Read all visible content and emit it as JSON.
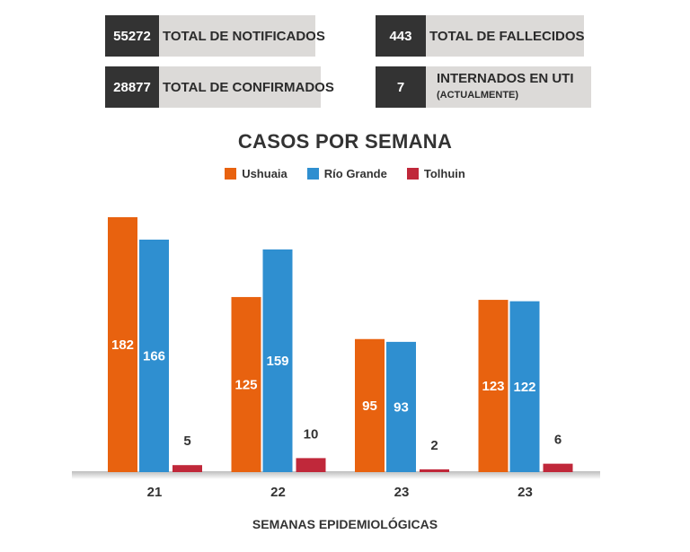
{
  "stats": {
    "notificados": {
      "value": "55272",
      "label": "TOTAL DE NOTIFICADOS"
    },
    "fallecidos": {
      "value": "443",
      "label": "TOTAL DE FALLECIDOS"
    },
    "confirmados": {
      "value": "28877",
      "label": "TOTAL DE CONFIRMADOS"
    },
    "uti": {
      "value": "7",
      "label": "INTERNADOS EN UTI",
      "sublabel": "(ACTUALMENTE)"
    }
  },
  "chart_data": {
    "type": "bar",
    "title": "CASOS POR SEMANA",
    "xlabel": "SEMANAS EPIDEMIOLÓGICAS",
    "ylabel": "",
    "categories": [
      "21",
      "22",
      "23",
      "23"
    ],
    "series": [
      {
        "name": "Ushuaia",
        "values": [
          182,
          125,
          95,
          123
        ],
        "color": "#e8620f"
      },
      {
        "name": "Río Grande",
        "values": [
          166,
          159,
          93,
          122
        ],
        "color": "#2f8fd0"
      },
      {
        "name": "Tolhuin",
        "values": [
          5,
          10,
          2,
          6
        ],
        "color": "#c0283a"
      }
    ],
    "ylim": [
      0,
      182
    ],
    "grid": false,
    "legend": "top-center"
  }
}
